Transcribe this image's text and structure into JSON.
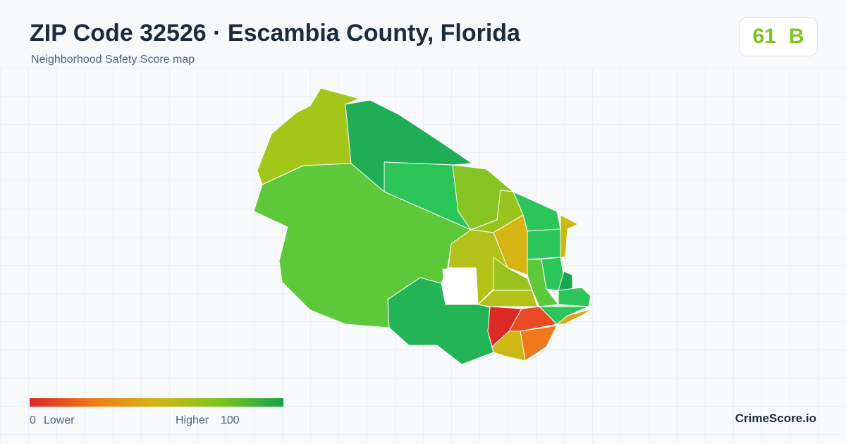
{
  "header": {
    "title": "ZIP Code 32526 · Escambia County, Florida",
    "subtitle": "Neighborhood Safety Score map"
  },
  "badge": {
    "score": "61",
    "grade": "B"
  },
  "legend": {
    "min": "0",
    "min_label": "Lower",
    "max_label": "Higher",
    "max": "100"
  },
  "brand": "CrimeScore.io"
}
